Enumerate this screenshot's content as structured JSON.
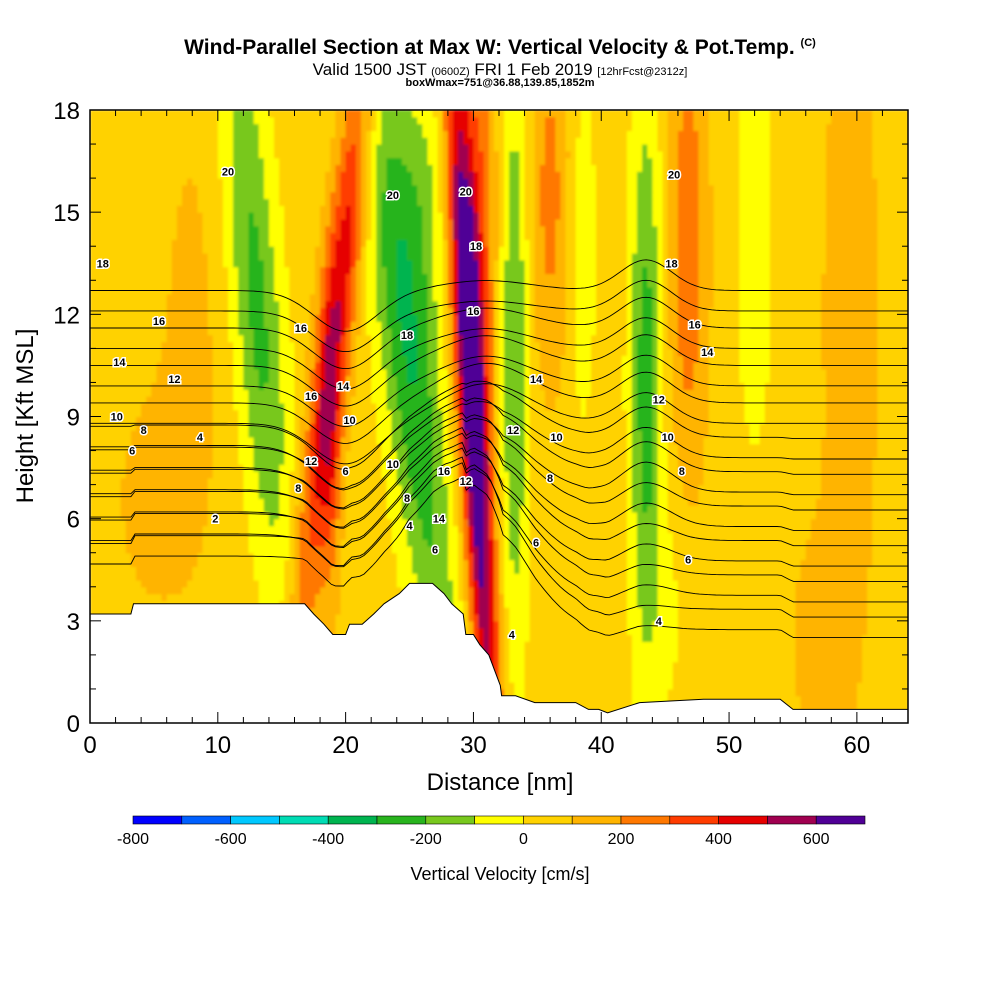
{
  "title": {
    "main": "Wind-Parallel Section at Max W: Vertical Velocity & Pot.Temp.",
    "main_sup": "(C)",
    "valid_pre": "Valid 1500 JST",
    "valid_z": "(0600Z)",
    "valid_mid": "FRI 1 Feb 2019",
    "valid_fcst": "[12hrFcst@2312z]",
    "box": "boxWmax=751@36.88,139.85,1852m"
  },
  "chart_data": {
    "type": "heatmap",
    "xlabel": "Distance [nm]",
    "ylabel": "Height [Kft MSL]",
    "xlim": [
      0,
      64
    ],
    "ylim": [
      0,
      18
    ],
    "x_ticks": [
      0,
      10,
      20,
      30,
      40,
      50,
      60
    ],
    "y_ticks": [
      0,
      3,
      6,
      9,
      12,
      15,
      18
    ],
    "colorbar": {
      "label": "Vertical Velocity [cm/s]",
      "boundaries": [
        -800,
        -700,
        -600,
        -500,
        -400,
        -300,
        -200,
        -100,
        0,
        100,
        200,
        300,
        400,
        500,
        600,
        700
      ],
      "colors": [
        "#0000ff",
        "#0060ff",
        "#00c8ff",
        "#00dcb4",
        "#00b450",
        "#28b41e",
        "#78c81e",
        "#ffff00",
        "#ffd200",
        "#ffb400",
        "#ff7800",
        "#ff3c00",
        "#e60000",
        "#a00050",
        "#500096"
      ],
      "tick_labels": [
        "-800",
        "-600",
        "-400",
        "-200",
        "0",
        "200",
        "400",
        "600"
      ],
      "tick_values": [
        -800,
        -600,
        -400,
        -200,
        0,
        200,
        400,
        600
      ]
    },
    "background_w_cms": 50,
    "terrain": [
      [
        0,
        3.2
      ],
      [
        1.2,
        3.2
      ],
      [
        3.2,
        3.2
      ],
      [
        3.4,
        3.5
      ],
      [
        16.8,
        3.5
      ],
      [
        17.5,
        3.2
      ],
      [
        18.3,
        2.9
      ],
      [
        19.0,
        2.6
      ],
      [
        20.0,
        2.6
      ],
      [
        20.3,
        2.9
      ],
      [
        21.3,
        2.9
      ],
      [
        22.2,
        3.2
      ],
      [
        23.0,
        3.5
      ],
      [
        24.2,
        3.8
      ],
      [
        25.0,
        4.1
      ],
      [
        26.8,
        4.1
      ],
      [
        27.7,
        3.8
      ],
      [
        28.3,
        3.5
      ],
      [
        29.2,
        3.2
      ],
      [
        29.4,
        2.6
      ],
      [
        30.0,
        2.6
      ],
      [
        30.5,
        2.3
      ],
      [
        31.2,
        2.0
      ],
      [
        31.7,
        1.5
      ],
      [
        32.1,
        1.1
      ],
      [
        32.2,
        0.8
      ],
      [
        33.3,
        0.8
      ],
      [
        34.8,
        0.6
      ],
      [
        38.0,
        0.6
      ],
      [
        39.0,
        0.4
      ],
      [
        39.8,
        0.4
      ],
      [
        40.5,
        0.3
      ],
      [
        43.0,
        0.6
      ],
      [
        48.0,
        0.7
      ],
      [
        54.0,
        0.7
      ],
      [
        55.0,
        0.4
      ],
      [
        64.0,
        0.4
      ]
    ],
    "w_features": [
      {
        "x": 30.0,
        "y": 9.0,
        "sx": 0.8,
        "sy": 8.0,
        "w": 680,
        "lean": -0.15
      },
      {
        "x": 30.3,
        "y": 14.5,
        "sx": 1.1,
        "sy": 4.5,
        "w": 250,
        "lean": 0
      },
      {
        "x": 19.3,
        "y": 12.0,
        "sx": 1.0,
        "sy": 7.0,
        "w": 420,
        "lean": 0.3
      },
      {
        "x": 18.8,
        "y": 7.5,
        "sx": 0.6,
        "sy": 3.2,
        "w": 180,
        "lean": 0
      },
      {
        "x": 25.0,
        "y": 10.5,
        "sx": 1.6,
        "sy": 7.0,
        "w": -330,
        "lean": -0.3
      },
      {
        "x": 13.0,
        "y": 12.5,
        "sx": 1.4,
        "sy": 6.0,
        "w": -280,
        "lean": -0.2
      },
      {
        "x": 33.2,
        "y": 11.0,
        "sx": 0.8,
        "sy": 6.5,
        "w": -260,
        "lean": 0
      },
      {
        "x": 43.5,
        "y": 10.0,
        "sx": 0.9,
        "sy": 6.0,
        "w": -300,
        "lean": 0
      },
      {
        "x": 38.5,
        "y": 14.0,
        "sx": 0.8,
        "sy": 4.0,
        "w": -120,
        "lean": 0
      },
      {
        "x": 46.8,
        "y": 14.0,
        "sx": 1.1,
        "sy": 5.0,
        "w": 220,
        "lean": 0
      },
      {
        "x": 36.0,
        "y": 15.5,
        "sx": 1.2,
        "sy": 4.0,
        "w": 180,
        "lean": 0
      },
      {
        "x": 52.0,
        "y": 14.0,
        "sx": 1.4,
        "sy": 6.0,
        "w": -80,
        "lean": 0
      },
      {
        "x": 59.5,
        "y": 12.0,
        "sx": 1.6,
        "sy": 7.0,
        "w": 120,
        "lean": 0
      },
      {
        "x": 26.0,
        "y": 15.5,
        "sx": 1.5,
        "sy": 3.0,
        "w": -150,
        "lean": 0
      },
      {
        "x": 5.0,
        "y": 6.5,
        "sx": 2.5,
        "sy": 2.5,
        "w": 80,
        "lean": 0
      },
      {
        "x": 8.0,
        "y": 12.0,
        "sx": 2.0,
        "sy": 5.0,
        "w": 70,
        "lean": 0
      },
      {
        "x": 45.5,
        "y": 3.5,
        "sx": 1.2,
        "sy": 2.5,
        "w": -70,
        "lean": 0
      },
      {
        "x": 57.0,
        "y": 2.5,
        "sx": 1.8,
        "sy": 2.5,
        "w": 90,
        "lean": 0
      }
    ],
    "theta_levels": [
      2,
      4,
      6,
      8,
      10,
      12,
      14,
      16,
      18,
      20
    ],
    "theta_labels": [
      {
        "text": "20",
        "x": 10.8,
        "y": 16.2
      },
      {
        "text": "18",
        "x": 1.0,
        "y": 13.5
      },
      {
        "text": "16",
        "x": 5.4,
        "y": 11.8
      },
      {
        "text": "14",
        "x": 2.3,
        "y": 10.6
      },
      {
        "text": "12",
        "x": 6.6,
        "y": 10.1
      },
      {
        "text": "10",
        "x": 2.1,
        "y": 9.0
      },
      {
        "text": "8",
        "x": 4.2,
        "y": 8.6
      },
      {
        "text": "6",
        "x": 3.3,
        "y": 8.0
      },
      {
        "text": "4",
        "x": 8.6,
        "y": 8.4
      },
      {
        "text": "2",
        "x": 9.8,
        "y": 6.0
      },
      {
        "text": "16",
        "x": 16.5,
        "y": 11.6
      },
      {
        "text": "16",
        "x": 17.3,
        "y": 9.6
      },
      {
        "text": "14",
        "x": 19.8,
        "y": 9.9
      },
      {
        "text": "12",
        "x": 17.3,
        "y": 7.7
      },
      {
        "text": "10",
        "x": 20.3,
        "y": 8.9
      },
      {
        "text": "8",
        "x": 16.3,
        "y": 6.9
      },
      {
        "text": "6",
        "x": 20.0,
        "y": 7.4
      },
      {
        "text": "20",
        "x": 23.7,
        "y": 15.5
      },
      {
        "text": "18",
        "x": 24.8,
        "y": 11.4
      },
      {
        "text": "16",
        "x": 27.7,
        "y": 7.4
      },
      {
        "text": "14",
        "x": 27.3,
        "y": 6.0
      },
      {
        "text": "10",
        "x": 23.7,
        "y": 7.6
      },
      {
        "text": "8",
        "x": 24.8,
        "y": 6.6
      },
      {
        "text": "6",
        "x": 27.0,
        "y": 5.1
      },
      {
        "text": "4",
        "x": 25.0,
        "y": 5.8
      },
      {
        "text": "20",
        "x": 29.4,
        "y": 15.6
      },
      {
        "text": "18",
        "x": 30.2,
        "y": 14.0
      },
      {
        "text": "16",
        "x": 30.0,
        "y": 12.1
      },
      {
        "text": "12",
        "x": 29.4,
        "y": 7.1
      },
      {
        "text": "14",
        "x": 34.9,
        "y": 10.1
      },
      {
        "text": "12",
        "x": 33.1,
        "y": 8.6
      },
      {
        "text": "10",
        "x": 36.5,
        "y": 8.4
      },
      {
        "text": "8",
        "x": 36.0,
        "y": 7.2
      },
      {
        "text": "6",
        "x": 34.9,
        "y": 5.3
      },
      {
        "text": "4",
        "x": 33.0,
        "y": 2.6
      },
      {
        "text": "20",
        "x": 45.7,
        "y": 16.1
      },
      {
        "text": "18",
        "x": 45.5,
        "y": 13.5
      },
      {
        "text": "16",
        "x": 47.3,
        "y": 11.7
      },
      {
        "text": "14",
        "x": 48.3,
        "y": 10.9
      },
      {
        "text": "12",
        "x": 44.5,
        "y": 9.5
      },
      {
        "text": "10",
        "x": 45.2,
        "y": 8.4
      },
      {
        "text": "8",
        "x": 46.3,
        "y": 7.4
      },
      {
        "text": "6",
        "x": 46.8,
        "y": 4.8
      },
      {
        "text": "4",
        "x": 44.5,
        "y": 3.0
      }
    ]
  }
}
